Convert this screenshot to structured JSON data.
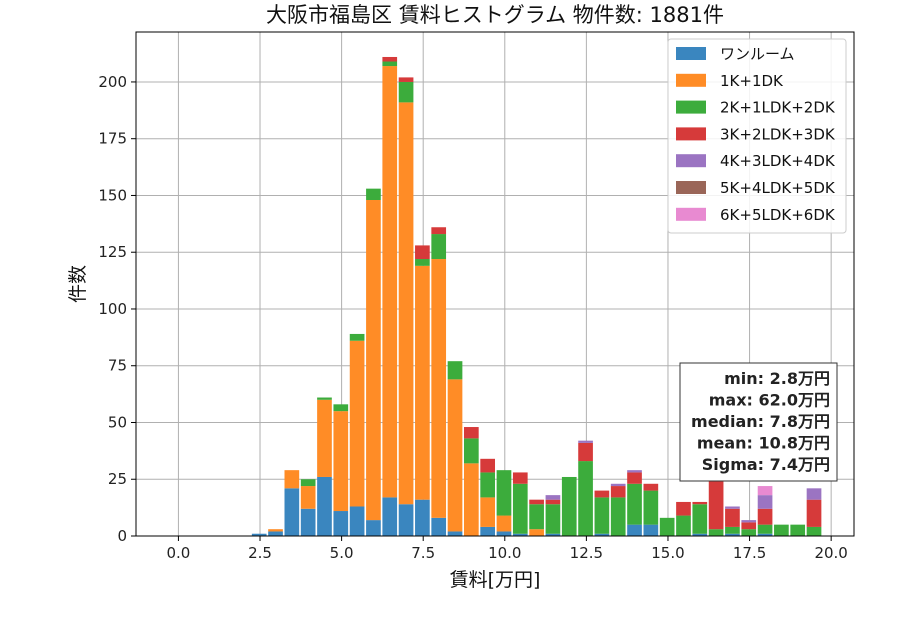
{
  "chart_data": {
    "type": "bar",
    "stacked": true,
    "title": "大阪市福島区 賃料ヒストグラム  物件数: 1881件",
    "xlabel": "賃料[万円]",
    "ylabel": "件数",
    "xlim": [
      -1.3,
      20.7
    ],
    "ylim": [
      0,
      222
    ],
    "xticks": [
      0,
      2.5,
      5,
      7.5,
      10,
      12.5,
      15,
      17.5,
      20
    ],
    "xtick_labels": [
      "0.0",
      "2.5",
      "5.0",
      "7.5",
      "10.0",
      "12.5",
      "15.0",
      "17.5",
      "20.0"
    ],
    "yticks": [
      0,
      25,
      50,
      75,
      100,
      125,
      150,
      175,
      200
    ],
    "ytick_labels": [
      "0",
      "25",
      "50",
      "75",
      "100",
      "125",
      "150",
      "175",
      "200"
    ],
    "grid": true,
    "legend_position": "top-right",
    "bin_starts": [
      2.25,
      2.75,
      3.25,
      3.75,
      4.25,
      4.75,
      5.25,
      5.75,
      6.25,
      6.75,
      7.25,
      7.75,
      8.25,
      8.75,
      9.25,
      9.75,
      10.25,
      10.75,
      11.25,
      11.75,
      12.25,
      12.75,
      13.25,
      13.75,
      14.25,
      14.75,
      15.25,
      15.75,
      16.25,
      16.75,
      17.25,
      17.75,
      18.25,
      18.75,
      19.25
    ],
    "bin_width": 0.5,
    "series": [
      {
        "name": "ワンルーム",
        "color": "#3a86bf",
        "values": [
          1,
          2,
          21,
          12,
          26,
          11,
          13,
          7,
          17,
          14,
          16,
          8,
          2,
          0,
          4,
          2,
          1,
          0,
          1,
          0,
          0,
          1,
          0,
          5,
          5,
          0,
          0,
          1,
          0,
          1,
          0,
          1,
          0,
          0,
          0
        ]
      },
      {
        "name": "1K+1DK",
        "color": "#ff8c26",
        "values": [
          0,
          1,
          8,
          10,
          34,
          44,
          73,
          141,
          190,
          177,
          103,
          114,
          67,
          32,
          13,
          7,
          0,
          3,
          0,
          0,
          0,
          0,
          0,
          0,
          0,
          0,
          0,
          0,
          0,
          0,
          0,
          0,
          0,
          0,
          0
        ]
      },
      {
        "name": "2K+1LDK+2DK",
        "color": "#3cac3c",
        "values": [
          0,
          0,
          0,
          3,
          1,
          3,
          3,
          5,
          2,
          9,
          3,
          11,
          8,
          11,
          11,
          20,
          22,
          11,
          13,
          26,
          33,
          16,
          17,
          18,
          15,
          8,
          9,
          13,
          3,
          3,
          3,
          4,
          5,
          5,
          4
        ]
      },
      {
        "name": "3K+2LDK+3DK",
        "color": "#d63a3a",
        "values": [
          0,
          0,
          0,
          0,
          0,
          0,
          0,
          0,
          2,
          2,
          6,
          3,
          0,
          5,
          6,
          0,
          5,
          2,
          2,
          0,
          8,
          3,
          5,
          5,
          3,
          0,
          6,
          1,
          21,
          8,
          3,
          7,
          0,
          0,
          12
        ]
      },
      {
        "name": "4K+3LDK+4DK",
        "color": "#9b74c2",
        "values": [
          0,
          0,
          0,
          0,
          0,
          0,
          0,
          0,
          0,
          0,
          0,
          0,
          0,
          0,
          0,
          0,
          0,
          0,
          2,
          0,
          1,
          0,
          1,
          1,
          0,
          0,
          0,
          0,
          0,
          1,
          1,
          6,
          0,
          0,
          5
        ]
      },
      {
        "name": "5K+4LDK+5DK",
        "color": "#9a6658",
        "values": [
          0,
          0,
          0,
          0,
          0,
          0,
          0,
          0,
          0,
          0,
          0,
          0,
          0,
          0,
          0,
          0,
          0,
          0,
          0,
          0,
          0,
          0,
          0,
          0,
          0,
          0,
          0,
          0,
          0,
          0,
          0,
          0,
          0,
          0,
          0
        ]
      },
      {
        "name": "6K+5LDK+6DK",
        "color": "#e88ad1",
        "values": [
          0,
          0,
          0,
          0,
          0,
          0,
          0,
          0,
          0,
          0,
          0,
          0,
          0,
          0,
          0,
          0,
          0,
          0,
          0,
          0,
          0,
          0,
          0,
          0,
          0,
          0,
          0,
          0,
          0,
          0,
          0,
          4,
          0,
          0,
          0
        ]
      }
    ],
    "stats": [
      "min: 2.8万円",
      "max: 62.0万円",
      "median: 7.8万円",
      "mean: 10.8万円",
      "Sigma: 7.4万円"
    ]
  }
}
